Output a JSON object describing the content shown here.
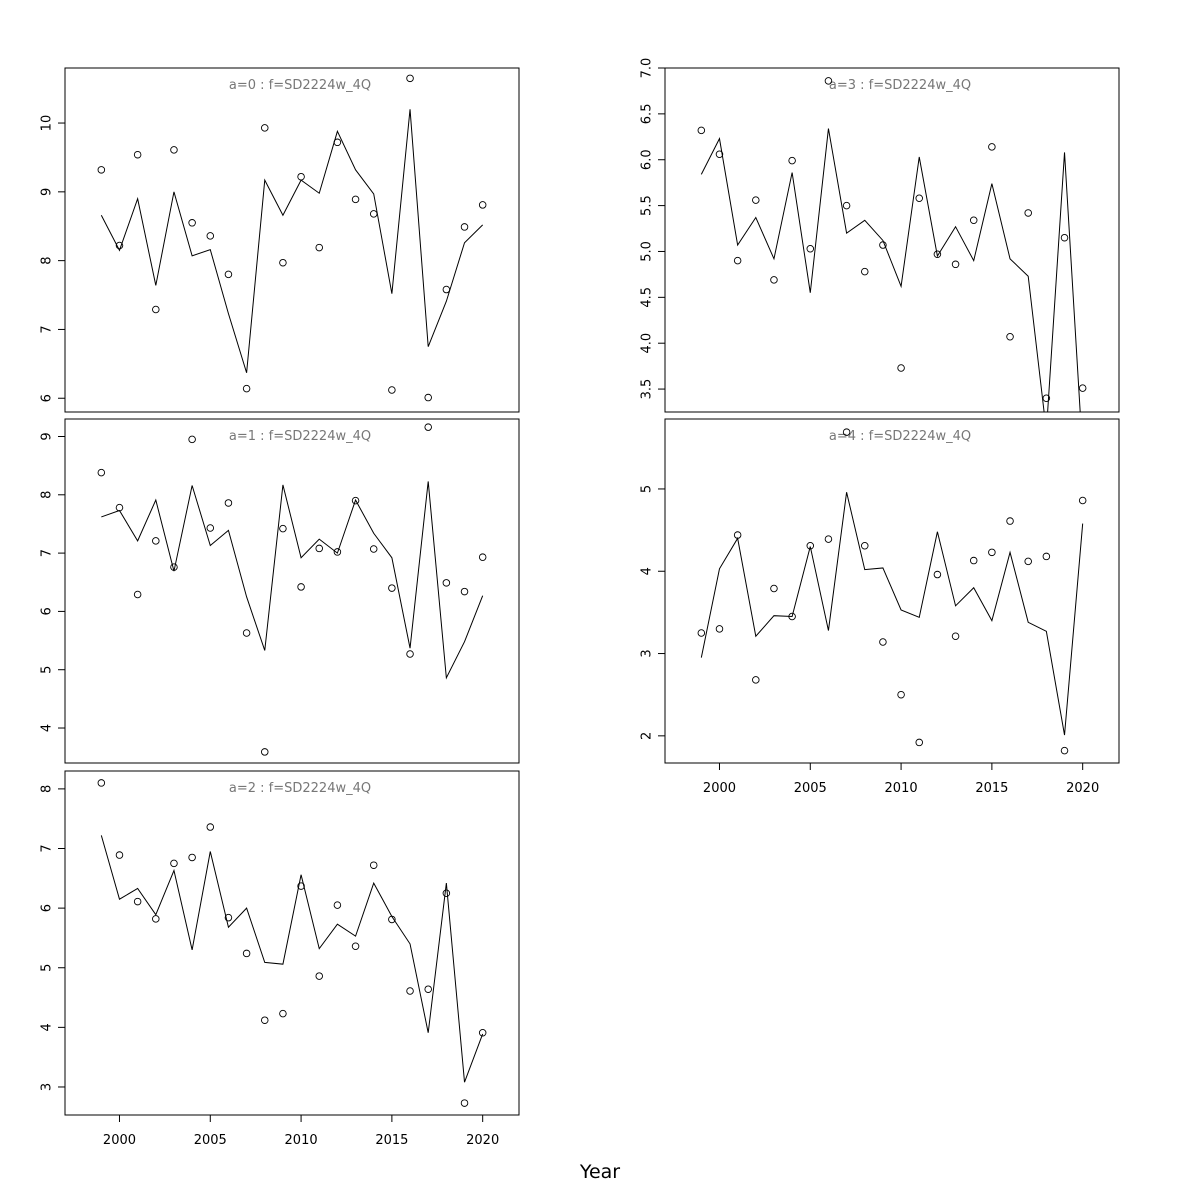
{
  "figure": {
    "xlabel": "Year"
  },
  "chart_data": [
    {
      "type": "line",
      "title": "a=0  :  f=SD2224w_4Q",
      "xlim": [
        1997,
        2022
      ],
      "ylim": [
        5.8,
        10.8
      ],
      "x_ticks": [
        2000,
        2005,
        2010,
        2015,
        2020
      ],
      "y_ticks": [
        6,
        7,
        8,
        9,
        10
      ],
      "show_x_axis": false,
      "series": [
        {
          "role": "observed",
          "style": "points",
          "x": [
            1999,
            2000,
            2001,
            2002,
            2003,
            2004,
            2005,
            2006,
            2007,
            2008,
            2009,
            2010,
            2011,
            2012,
            2013,
            2014,
            2015,
            2016,
            2017,
            2018,
            2019,
            2020
          ],
          "values": [
            9.32,
            8.22,
            9.54,
            7.29,
            9.61,
            8.55,
            8.36,
            7.8,
            6.14,
            9.93,
            7.97,
            9.22,
            8.19,
            9.72,
            8.89,
            8.68,
            6.12,
            10.65,
            6.01,
            7.58,
            8.49,
            8.81
          ]
        },
        {
          "role": "fitted",
          "style": "line",
          "x": [
            1999,
            2000,
            2001,
            2002,
            2003,
            2004,
            2005,
            2006,
            2007,
            2008,
            2009,
            2010,
            2011,
            2012,
            2013,
            2014,
            2015,
            2016,
            2017,
            2018,
            2019,
            2020
          ],
          "values": [
            8.66,
            8.15,
            8.9,
            7.64,
            9.0,
            8.07,
            8.16,
            7.23,
            6.37,
            9.17,
            8.66,
            9.17,
            8.98,
            9.88,
            9.32,
            8.97,
            7.52,
            10.2,
            6.75,
            7.41,
            8.26,
            8.52
          ]
        }
      ]
    },
    {
      "type": "line",
      "title": "a=1  :  f=SD2224w_4Q",
      "xlim": [
        1997,
        2022
      ],
      "ylim": [
        3.4,
        9.3
      ],
      "x_ticks": [
        2000,
        2005,
        2010,
        2015,
        2020
      ],
      "y_ticks": [
        4,
        5,
        6,
        7,
        8,
        9
      ],
      "show_x_axis": false,
      "series": [
        {
          "role": "observed",
          "style": "points",
          "x": [
            1999,
            2000,
            2001,
            2002,
            2003,
            2004,
            2005,
            2006,
            2007,
            2008,
            2009,
            2010,
            2011,
            2012,
            2013,
            2014,
            2015,
            2016,
            2017,
            2018,
            2019,
            2020
          ],
          "values": [
            8.38,
            7.78,
            6.29,
            7.21,
            6.76,
            8.95,
            7.43,
            7.86,
            5.63,
            3.59,
            7.42,
            6.42,
            7.08,
            7.02,
            7.9,
            7.07,
            6.4,
            5.27,
            9.16,
            6.49,
            6.34,
            6.93
          ]
        },
        {
          "role": "fitted",
          "style": "line",
          "x": [
            1999,
            2000,
            2001,
            2002,
            2003,
            2004,
            2005,
            2006,
            2007,
            2008,
            2009,
            2010,
            2011,
            2012,
            2013,
            2014,
            2015,
            2016,
            2017,
            2018,
            2019,
            2020
          ],
          "values": [
            7.62,
            7.73,
            7.21,
            7.91,
            6.69,
            8.16,
            7.13,
            7.39,
            6.25,
            5.33,
            8.17,
            6.92,
            7.24,
            7.0,
            7.91,
            7.34,
            6.92,
            5.37,
            8.23,
            4.86,
            5.48,
            6.27
          ]
        }
      ]
    },
    {
      "type": "line",
      "title": "a=2  :  f=SD2224w_4Q",
      "xlim": [
        1997,
        2022
      ],
      "ylim": [
        2.53,
        8.3
      ],
      "x_ticks": [
        2000,
        2005,
        2010,
        2015,
        2020
      ],
      "y_ticks": [
        3,
        4,
        5,
        6,
        7,
        8
      ],
      "show_x_axis": true,
      "series": [
        {
          "role": "observed",
          "style": "points",
          "x": [
            1999,
            2000,
            2001,
            2002,
            2003,
            2004,
            2005,
            2006,
            2007,
            2008,
            2009,
            2010,
            2011,
            2012,
            2013,
            2014,
            2015,
            2016,
            2017,
            2018,
            2019,
            2020
          ],
          "values": [
            8.1,
            6.89,
            6.11,
            5.82,
            6.75,
            6.85,
            7.36,
            5.84,
            5.24,
            4.12,
            4.23,
            6.37,
            4.86,
            6.05,
            5.36,
            6.72,
            5.81,
            4.61,
            4.64,
            6.25,
            2.73,
            3.91
          ]
        },
        {
          "role": "fitted",
          "style": "line",
          "x": [
            1999,
            2000,
            2001,
            2002,
            2003,
            2004,
            2005,
            2006,
            2007,
            2008,
            2009,
            2010,
            2011,
            2012,
            2013,
            2014,
            2015,
            2016,
            2017,
            2018,
            2019,
            2020
          ],
          "values": [
            7.22,
            6.15,
            6.33,
            5.89,
            6.63,
            5.3,
            6.95,
            5.68,
            6.0,
            5.09,
            5.06,
            6.56,
            5.32,
            5.73,
            5.53,
            6.42,
            5.86,
            5.4,
            3.91,
            6.42,
            3.08,
            3.89
          ]
        }
      ]
    },
    {
      "type": "line",
      "title": "a=3  :  f=SD2224w_4Q",
      "xlim": [
        1997,
        2022
      ],
      "ylim": [
        3.25,
        7.0
      ],
      "x_ticks": [
        2000,
        2005,
        2010,
        2015,
        2020
      ],
      "y_ticks": [
        3.5,
        4.0,
        4.5,
        5.0,
        5.5,
        6.0,
        6.5,
        7.0
      ],
      "y_tick_labels": [
        "3.5",
        "4.0",
        "4.5",
        "5.0",
        "5.5",
        "6.0",
        "6.5",
        "7.0"
      ],
      "show_x_axis": false,
      "series": [
        {
          "role": "observed",
          "style": "points",
          "x": [
            1999,
            2000,
            2001,
            2002,
            2003,
            2004,
            2005,
            2006,
            2007,
            2008,
            2009,
            2010,
            2011,
            2012,
            2013,
            2014,
            2015,
            2016,
            2017,
            2018,
            2019,
            2020
          ],
          "values": [
            6.32,
            6.06,
            4.9,
            5.56,
            4.69,
            5.99,
            5.03,
            6.86,
            5.5,
            4.78,
            5.07,
            3.73,
            5.58,
            4.97,
            4.86,
            5.34,
            6.14,
            4.07,
            5.42,
            3.4,
            5.15,
            3.51
          ]
        },
        {
          "role": "fitted",
          "style": "line",
          "x": [
            1999,
            2000,
            2001,
            2002,
            2003,
            2004,
            2005,
            2006,
            2007,
            2008,
            2009,
            2010,
            2011,
            2012,
            2013,
            2014,
            2015,
            2016,
            2017,
            2018,
            2019,
            2020
          ],
          "values": [
            5.84,
            6.23,
            5.07,
            5.37,
            4.92,
            5.86,
            4.55,
            6.34,
            5.2,
            5.34,
            5.12,
            4.62,
            6.03,
            4.95,
            5.27,
            4.9,
            5.74,
            4.92,
            4.73,
            3.04,
            6.08,
            2.8
          ]
        }
      ]
    },
    {
      "type": "line",
      "title": "a=4  :  f=SD2224w_4Q",
      "xlim": [
        1997,
        2022
      ],
      "ylim": [
        1.67,
        5.85
      ],
      "x_ticks": [
        2000,
        2005,
        2010,
        2015,
        2020
      ],
      "y_ticks": [
        2,
        3,
        4,
        5
      ],
      "show_x_axis": true,
      "series": [
        {
          "role": "observed",
          "style": "points",
          "x": [
            1999,
            2000,
            2001,
            2002,
            2003,
            2004,
            2005,
            2006,
            2007,
            2008,
            2009,
            2010,
            2011,
            2012,
            2013,
            2014,
            2015,
            2016,
            2017,
            2018,
            2019,
            2020
          ],
          "values": [
            3.25,
            3.3,
            4.44,
            2.68,
            3.79,
            3.45,
            4.31,
            4.39,
            5.69,
            4.31,
            3.14,
            2.5,
            1.92,
            3.96,
            3.21,
            4.13,
            4.23,
            4.61,
            4.12,
            4.18,
            1.82,
            4.86
          ]
        },
        {
          "role": "fitted",
          "style": "line",
          "x": [
            1999,
            2000,
            2001,
            2002,
            2003,
            2004,
            2005,
            2006,
            2007,
            2008,
            2009,
            2010,
            2011,
            2012,
            2013,
            2014,
            2015,
            2016,
            2017,
            2018,
            2019,
            2020
          ],
          "values": [
            2.95,
            4.03,
            4.4,
            3.21,
            3.46,
            3.45,
            4.3,
            3.28,
            4.96,
            4.02,
            4.04,
            3.53,
            3.44,
            4.48,
            3.58,
            3.8,
            3.4,
            4.23,
            3.38,
            3.27,
            2.01,
            4.58
          ]
        }
      ]
    }
  ]
}
